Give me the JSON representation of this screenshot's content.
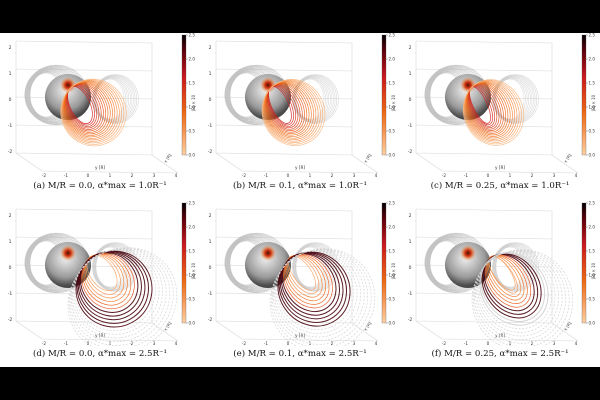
{
  "colorbar": {
    "label": "|B| × 10",
    "ticks": [
      "0.0",
      "0.5",
      "1.0",
      "1.5",
      "2.0",
      "2.5"
    ]
  },
  "axes": {
    "y_label": "y [R]",
    "x_label": "x [R]",
    "z_ticks": [
      "-2",
      "-1",
      "0",
      "1",
      "2"
    ],
    "y_ticks": [
      "-2",
      "-1",
      "0",
      "1",
      "2",
      "3",
      "4"
    ],
    "x_ticks": [
      "-2",
      "-1",
      "0",
      "1",
      "2"
    ]
  },
  "panels": [
    {
      "caption": "(a) M/R = 0.0,  α*max = 1.0R⁻¹",
      "row": 0,
      "col": 0
    },
    {
      "caption": "(b) M/R = 0.1,  α*max = 1.0R⁻¹",
      "row": 0,
      "col": 1
    },
    {
      "caption": "(c) M/R = 0.25,  α*max = 1.0R⁻¹",
      "row": 0,
      "col": 2
    },
    {
      "caption": "(d) M/R = 0.0,  α*max = 2.5R⁻¹",
      "row": 1,
      "col": 0
    },
    {
      "caption": "(e) M/R = 0.1,  α*max = 2.5R⁻¹",
      "row": 1,
      "col": 1
    },
    {
      "caption": "(f) M/R = 0.25,  α*max = 2.5R⁻¹",
      "row": 1,
      "col": 2
    }
  ]
}
